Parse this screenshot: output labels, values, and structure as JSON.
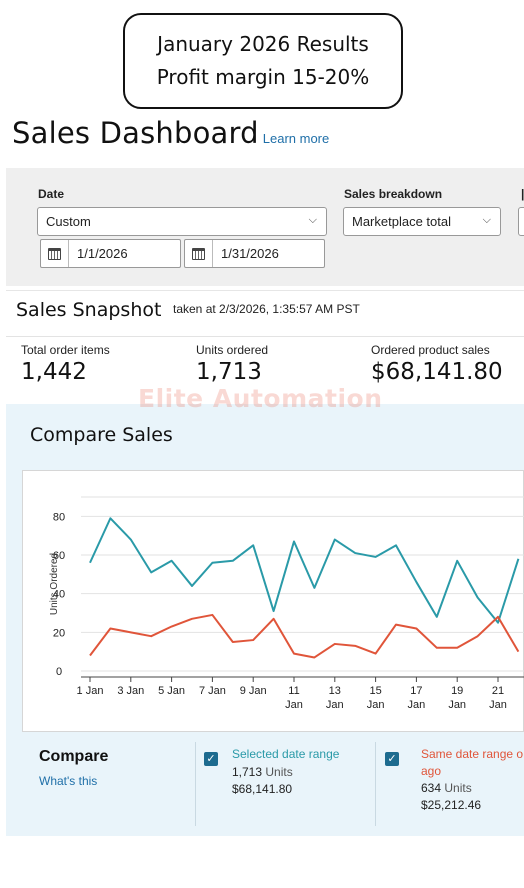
{
  "note": {
    "line1": "January 2026 Results",
    "line2": "Profit margin 15-20%"
  },
  "header": {
    "title": "Sales Dashboard",
    "learn_more": "Learn more"
  },
  "filters": {
    "date_label": "Date",
    "date_select": "Custom",
    "breakdown_label": "Sales breakdown",
    "breakdown_select": "Marketplace total",
    "start_date": "1/1/2026",
    "end_date": "1/31/2026"
  },
  "snapshot": {
    "title": "Sales Snapshot",
    "taken": "taken at 2/3/2026, 1:35:57 AM PST",
    "metrics": [
      {
        "label": "Total order items",
        "value": "1,442"
      },
      {
        "label": "Units ordered",
        "value": "1,713"
      },
      {
        "label": "Ordered product sales",
        "value": "$68,141.80"
      }
    ]
  },
  "watermark": "Elite Automation",
  "compare": {
    "title": "Compare Sales",
    "footer_title": "Compare",
    "whats_this": "What's this",
    "legend": [
      {
        "name": "Selected date range",
        "name2": "",
        "units": "1,713",
        "units_label": "Units",
        "sales": "$68,141.80",
        "color": "#2a9aa8"
      },
      {
        "name": "Same date range o",
        "name2": "ago",
        "units": "634",
        "units_label": "Units",
        "sales": "$25,212.46",
        "color": "#e0553a"
      }
    ]
  },
  "chart_data": {
    "type": "line",
    "ylabel": "Units Ordered",
    "xlabel": "",
    "ylim": [
      0,
      90
    ],
    "yticks": [
      0,
      20,
      40,
      60,
      80
    ],
    "x": [
      1,
      2,
      3,
      4,
      5,
      6,
      7,
      8,
      9,
      10,
      11,
      12,
      13,
      14,
      15,
      16,
      17,
      18,
      19,
      20,
      21,
      22
    ],
    "xticks": [
      {
        "x": 1,
        "l1": "1 Jan",
        "l2": ""
      },
      {
        "x": 3,
        "l1": "3 Jan",
        "l2": ""
      },
      {
        "x": 5,
        "l1": "5 Jan",
        "l2": ""
      },
      {
        "x": 7,
        "l1": "7 Jan",
        "l2": ""
      },
      {
        "x": 9,
        "l1": "9 Jan",
        "l2": ""
      },
      {
        "x": 11,
        "l1": "11",
        "l2": "Jan"
      },
      {
        "x": 13,
        "l1": "13",
        "l2": "Jan"
      },
      {
        "x": 15,
        "l1": "15",
        "l2": "Jan"
      },
      {
        "x": 17,
        "l1": "17",
        "l2": "Jan"
      },
      {
        "x": 19,
        "l1": "19",
        "l2": "Jan"
      },
      {
        "x": 21,
        "l1": "21",
        "l2": "Jan"
      }
    ],
    "grid": true,
    "series": [
      {
        "name": "Selected date range",
        "color": "#2a9aa8",
        "values": [
          56,
          79,
          68,
          51,
          57,
          44,
          56,
          57,
          65,
          31,
          67,
          43,
          68,
          61,
          59,
          65,
          46,
          28,
          57,
          38,
          25,
          58
        ]
      },
      {
        "name": "Same date range o ago",
        "color": "#e0553a",
        "values": [
          8,
          22,
          20,
          18,
          23,
          27,
          29,
          15,
          16,
          27,
          9,
          7,
          14,
          13,
          9,
          24,
          22,
          12,
          12,
          18,
          28,
          10
        ]
      }
    ]
  }
}
